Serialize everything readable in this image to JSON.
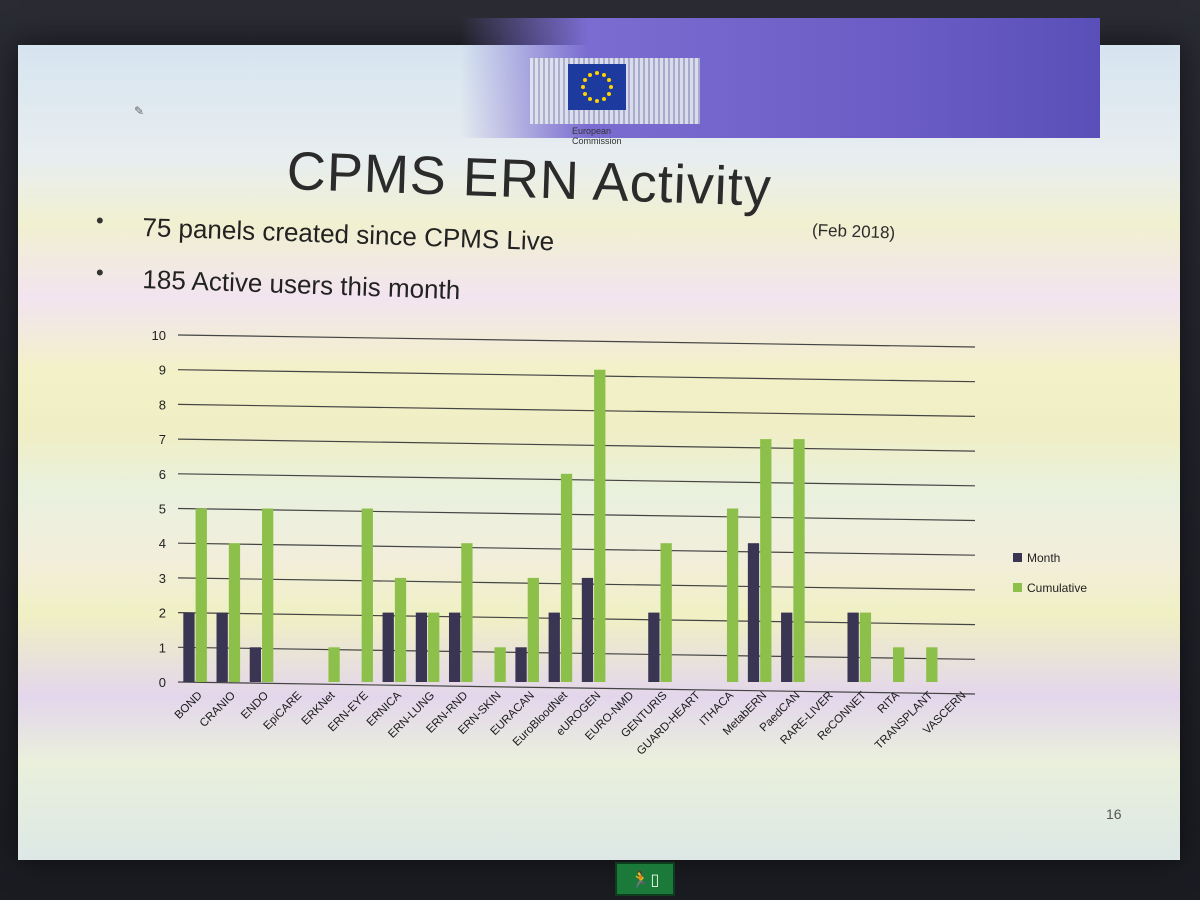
{
  "header": {
    "org_line1": "European",
    "org_line2": "Commission"
  },
  "slide": {
    "title": "CPMS ERN Activity",
    "subtitle": "(Feb 2018)",
    "bullets": [
      "75 panels created since CPMS Live",
      "185 Active users this month"
    ],
    "page_number": "16"
  },
  "colors": {
    "month": "#3a3552",
    "cumulative": "#8dc04a",
    "grid": "#444444"
  },
  "chart_data": {
    "type": "bar",
    "categories": [
      "BOND",
      "CRANIO",
      "ENDO",
      "EpiCARE",
      "ERKNet",
      "ERN-EYE",
      "ERNICA",
      "ERN-LUNG",
      "ERN-RND",
      "ERN-SKIN",
      "EURACAN",
      "EuroBloodNet",
      "eUROGEN",
      "EURO-NMD",
      "GENTURIS",
      "GUARD-HEART",
      "ITHACA",
      "MetabERN",
      "PaedCAN",
      "RARE-LIVER",
      "ReCONNET",
      "RITA",
      "TRANSPLANT",
      "VASCERN"
    ],
    "series": [
      {
        "name": "Month",
        "values": [
          2,
          2,
          1,
          0,
          0,
          0,
          2,
          2,
          2,
          0,
          1,
          2,
          3,
          0,
          2,
          0,
          0,
          4,
          2,
          0,
          2,
          0,
          0,
          0
        ]
      },
      {
        "name": "Cumulative",
        "values": [
          5,
          4,
          5,
          0,
          1,
          5,
          3,
          2,
          4,
          1,
          3,
          6,
          9,
          0,
          4,
          0,
          5,
          7,
          7,
          0,
          2,
          1,
          1,
          0
        ]
      }
    ],
    "title": "",
    "xlabel": "",
    "ylabel": "",
    "ylim": [
      0,
      10
    ],
    "yticks": [
      "0",
      "1",
      "2",
      "3",
      "4",
      "5",
      "6",
      "7",
      "8",
      "9",
      "10"
    ],
    "legend_position": "right",
    "grid": true
  }
}
